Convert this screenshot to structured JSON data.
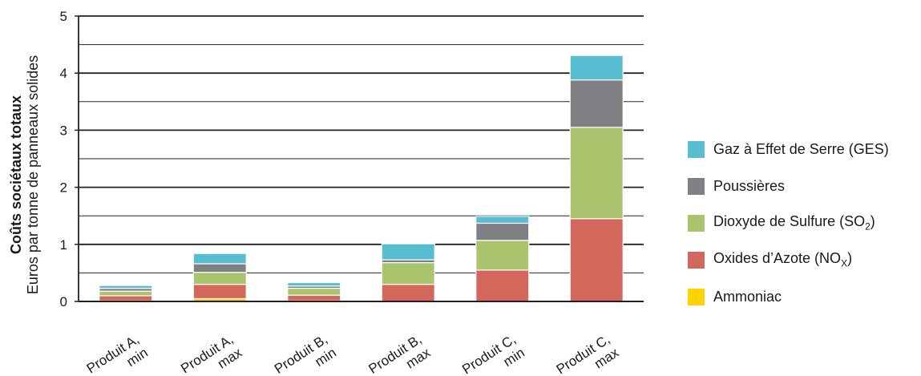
{
  "chart_data": {
    "type": "bar",
    "stacked": true,
    "ylabel": "Coûts sociétaux totaux",
    "ylabel_sub": "Euros par tonne de panneaux solides",
    "ylim": [
      0,
      5
    ],
    "yticks": [
      "0",
      "1",
      "2",
      "3",
      "4",
      "5"
    ],
    "grid": true,
    "legend_position": "right",
    "categories": [
      [
        "Produit A,",
        "min"
      ],
      [
        "Produit A,",
        "max"
      ],
      [
        "Produit B,",
        "min"
      ],
      [
        "Produit B,",
        "max"
      ],
      [
        "Produit C,",
        "min"
      ],
      [
        "Produit C,",
        "max"
      ]
    ],
    "series": [
      {
        "name": "Ammoniac",
        "color": "#ffd200",
        "values": [
          0.01,
          0.05,
          0.01,
          0.0,
          0.0,
          0.0
        ]
      },
      {
        "name": "Oxides d’Azote (NOx)",
        "color": "#d4675c",
        "values": [
          0.09,
          0.25,
          0.1,
          0.3,
          0.55,
          1.45
        ]
      },
      {
        "name": "Dioxyde de Sulfure (SO2)",
        "color": "#a9c46c",
        "values": [
          0.08,
          0.21,
          0.12,
          0.38,
          0.52,
          1.6
        ]
      },
      {
        "name": "Poussières",
        "color": "#7f8084",
        "values": [
          0.05,
          0.15,
          0.04,
          0.05,
          0.3,
          0.83
        ]
      },
      {
        "name": "Gaz à Effet de Serre (GES)",
        "color": "#58bdd1",
        "values": [
          0.05,
          0.18,
          0.06,
          0.28,
          0.12,
          0.43
        ]
      }
    ]
  },
  "legend": [
    {
      "text": "Gaz à Effet de Serre (GES)",
      "sub": "",
      "tail": "",
      "color": "#58bdd1"
    },
    {
      "text": "Poussières",
      "sub": "",
      "tail": "",
      "color": "#7f8084"
    },
    {
      "text": "Dioxyde de Sulfure (SO",
      "sub": "2",
      "tail": ")",
      "color": "#a9c46c"
    },
    {
      "text": "Oxides d’Azote (NO",
      "sub": "X",
      "tail": ")",
      "color": "#d4675c"
    },
    {
      "text": "Ammoniac",
      "sub": "",
      "tail": "",
      "color": "#ffd200"
    }
  ]
}
